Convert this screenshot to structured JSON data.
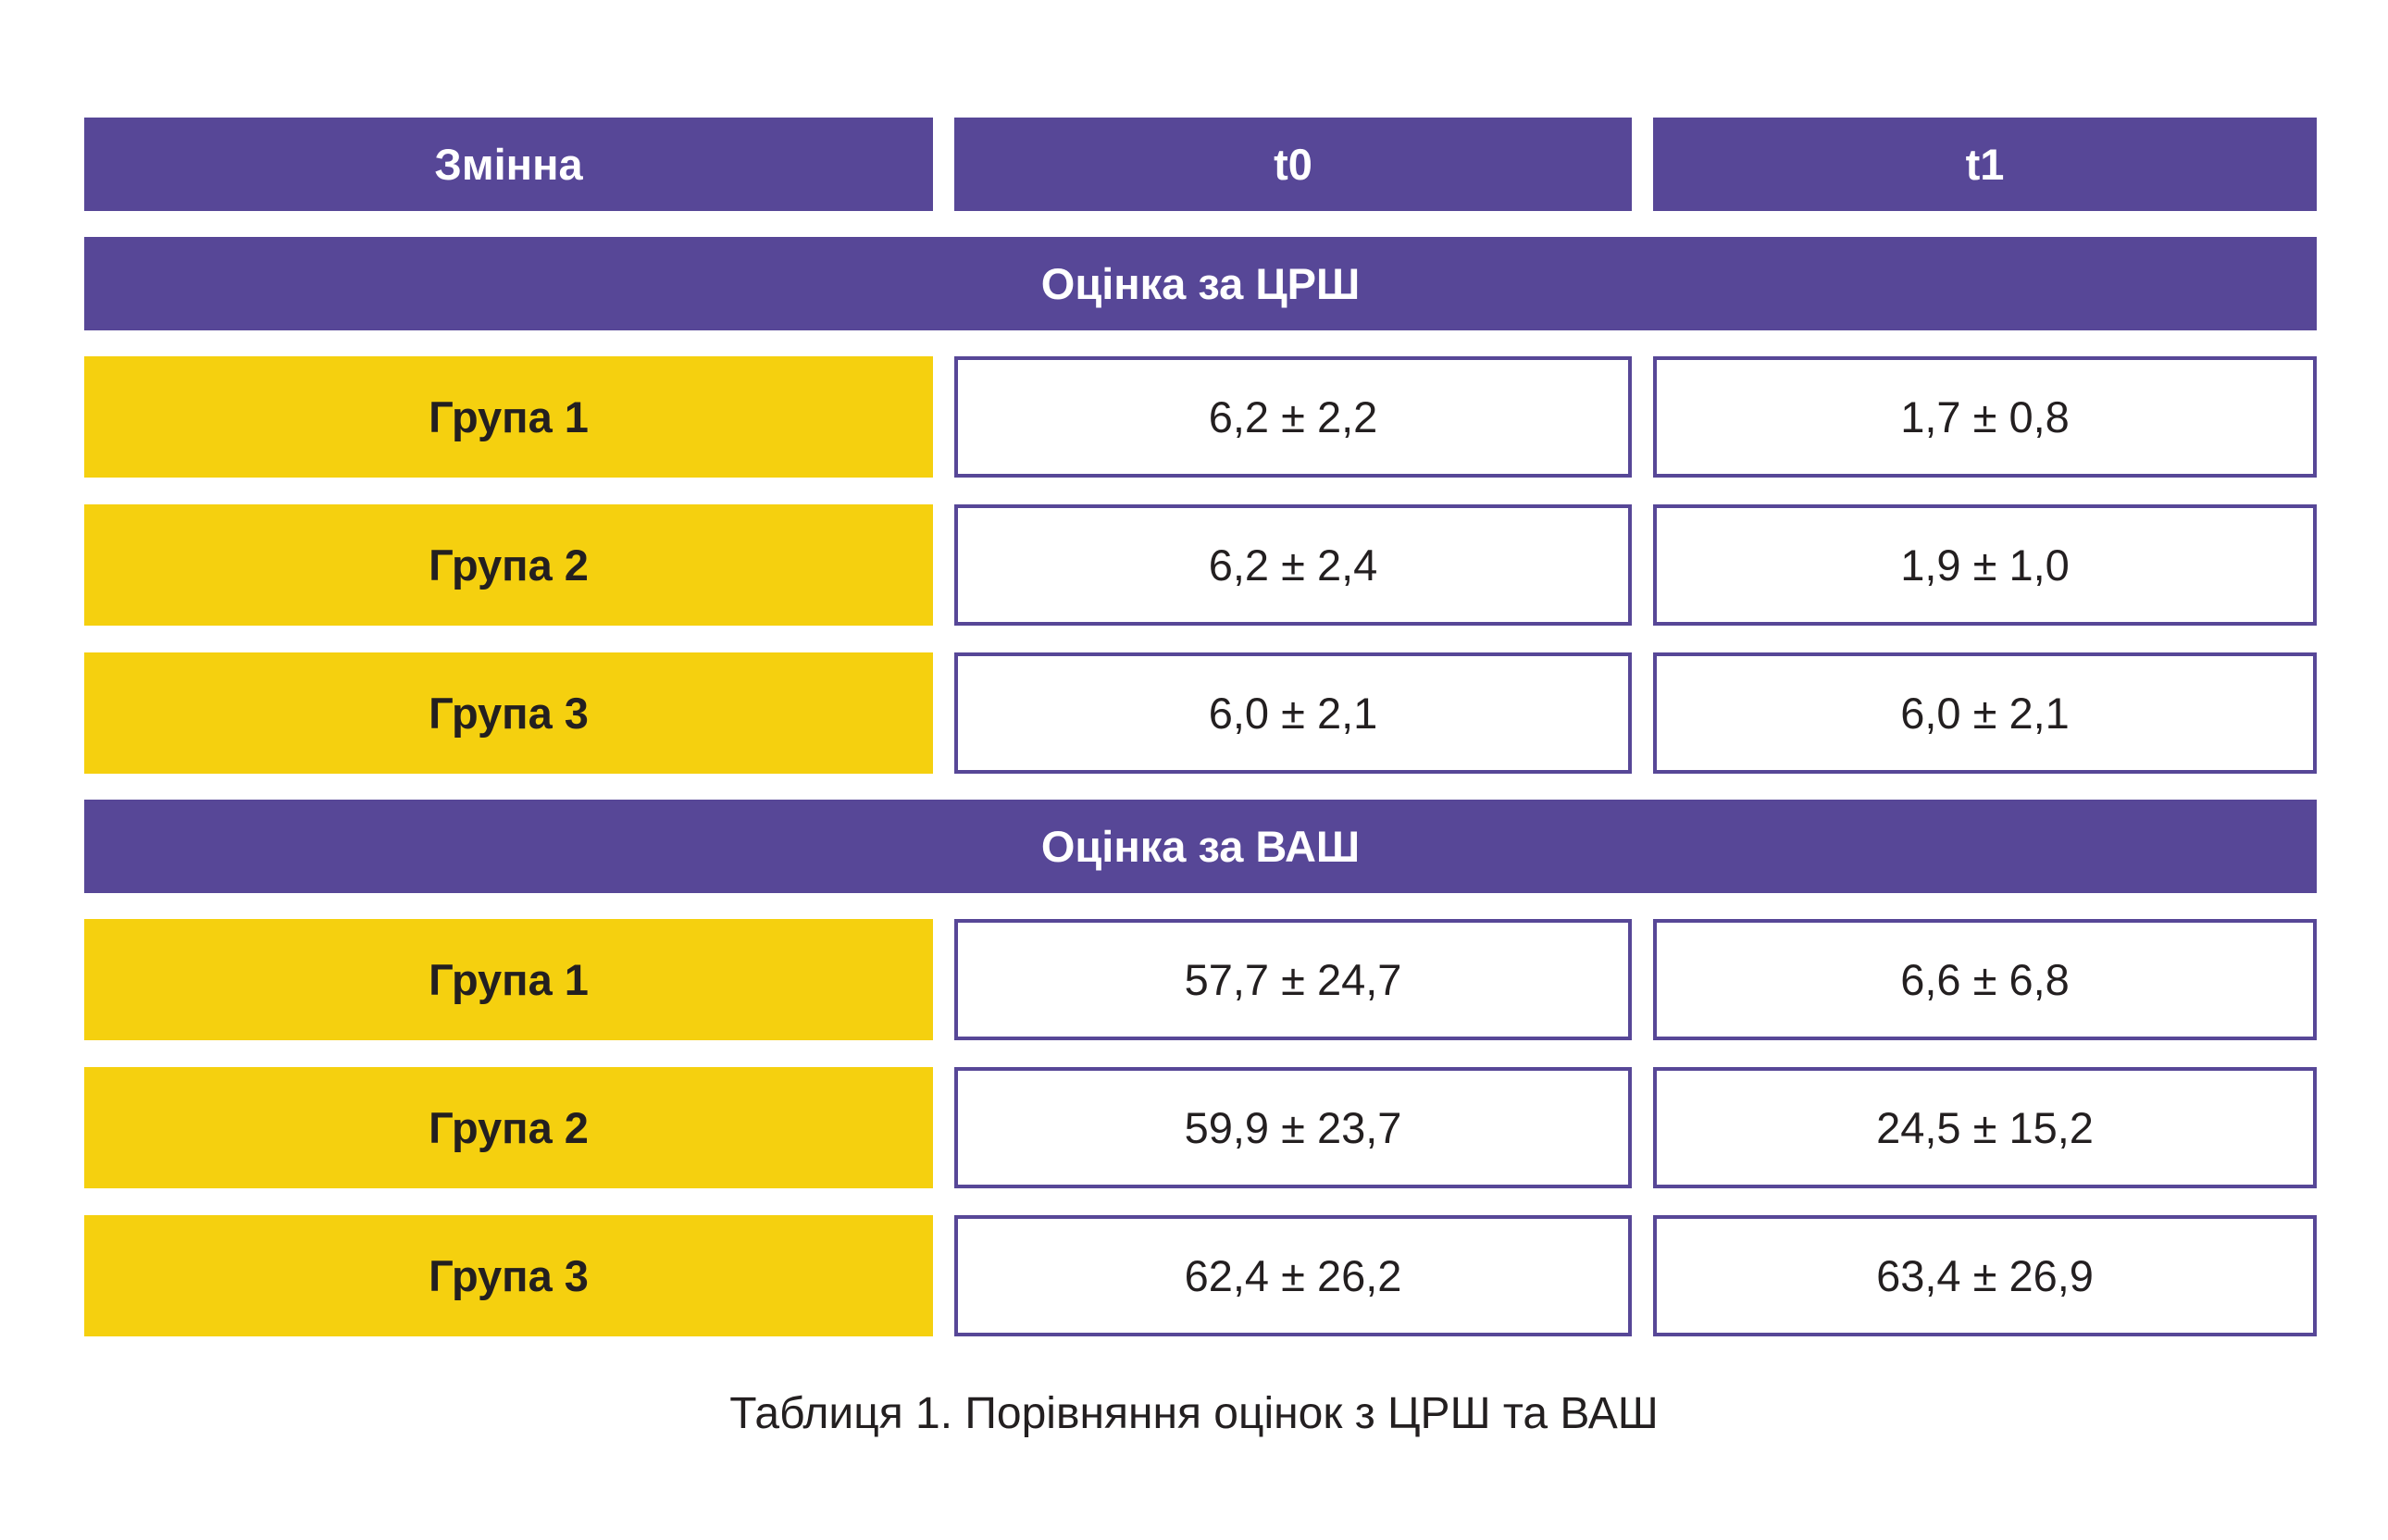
{
  "colors": {
    "header": "#574797",
    "group": "#f5d00f",
    "border": "#574797",
    "text": "#231f20"
  },
  "table": {
    "headers": [
      "Змінна",
      "t0",
      "t1"
    ],
    "sections": [
      {
        "title": "Оцінка за ЦРШ",
        "rows": [
          {
            "group": "Група 1",
            "t0": "6,2 ± 2,2",
            "t1": "1,7 ± 0,8"
          },
          {
            "group": "Група 2",
            "t0": "6,2 ± 2,4",
            "t1": "1,9 ± 1,0"
          },
          {
            "group": "Група 3",
            "t0": "6,0 ± 2,1",
            "t1": "6,0 ± 2,1"
          }
        ]
      },
      {
        "title": "Оцінка за ВАШ",
        "rows": [
          {
            "group": "Група 1",
            "t0": "57,7 ± 24,7",
            "t1": "6,6 ± 6,8"
          },
          {
            "group": "Група 2",
            "t0": "59,9 ± 23,7",
            "t1": "24,5 ± 15,2"
          },
          {
            "group": "Група 3",
            "t0": "62,4 ± 26,2",
            "t1": "63,4 ± 26,9"
          }
        ]
      }
    ]
  },
  "caption": "Таблиця 1. Порівняння оцінок з ЦРШ та ВАШ"
}
